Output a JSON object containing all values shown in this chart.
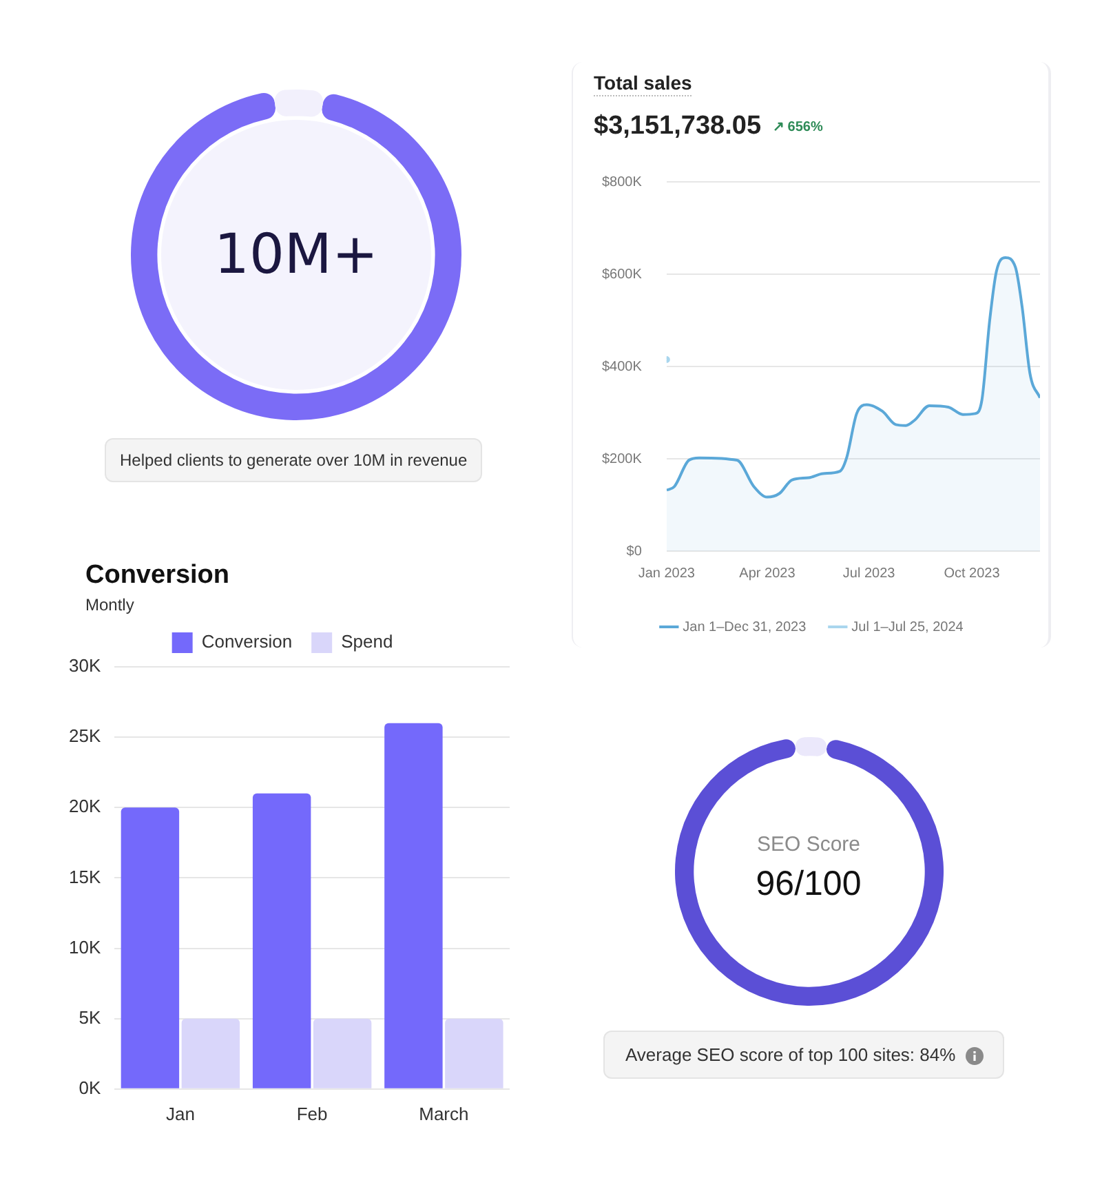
{
  "chart_data": [
    {
      "type": "donut",
      "categories": [
        null,
        null
      ],
      "values": [
        95,
        5
      ],
      "colors": [
        "#7b6cf6",
        "#f2f0fc"
      ],
      "annotations": [
        "10M+",
        "Helped clients to generate over 10M in revenue"
      ]
    },
    {
      "type": "area",
      "title": "Total sales",
      "subtitle": "$3,151,738.05",
      "annotations": [
        "↗ 656%"
      ],
      "series": [
        {
          "name": "Jan 1–Dec 31, 2023",
          "color": "#5ba8d8",
          "line_style": "solid",
          "x": [
            "2023-01-01",
            "2023-01-08",
            "2023-01-21",
            "2023-01-30",
            "2023-03-05",
            "2023-03-20",
            "2023-04-01",
            "2023-04-12",
            "2023-04-23",
            "2023-05-08",
            "2023-05-21",
            "2023-06-05",
            "2023-06-11",
            "2023-06-20",
            "2023-06-29",
            "2023-07-13",
            "2023-07-25",
            "2023-08-03",
            "2023-08-11",
            "2023-08-24",
            "2023-09-10",
            "2023-09-23",
            "2023-10-04",
            "2023-10-10",
            "2023-10-17",
            "2023-10-23",
            "2023-10-31",
            "2023-11-09",
            "2023-11-15",
            "2023-11-22",
            "2023-12-01"
          ],
          "values": [
            132,
            140,
            197,
            202,
            197,
            140,
            117,
            125,
            154,
            159,
            168,
            173,
            202,
            298,
            317,
            303,
            274,
            272,
            284,
            315,
            312,
            296,
            298,
            327,
            500,
            606,
            636,
            615,
            529,
            385,
            332
          ]
        },
        {
          "name": "Jul 1–Jul 25, 2024",
          "color": "#a9d6ee",
          "type": "line",
          "line_style": "dotted",
          "marker": "circle",
          "x": [
            "2023-01-01"
          ],
          "values": [
            415
          ]
        }
      ],
      "xlim": [
        "2023-01-01",
        "2023-12-01"
      ],
      "xticks": [
        {
          "value": "2023-01-01",
          "label": "Jan 2023"
        },
        {
          "value": "2023-04-01",
          "label": "Apr 2023"
        },
        {
          "value": "2023-07-01",
          "label": "Jul 2023"
        },
        {
          "value": "2023-10-01",
          "label": "Oct 2023"
        }
      ],
      "ylim": [
        0,
        800
      ],
      "yticks": [
        {
          "value": 0,
          "label": "$0"
        },
        {
          "value": 200,
          "label": "$200K"
        },
        {
          "value": 400,
          "label": "$400K"
        },
        {
          "value": 600,
          "label": "$600K"
        },
        {
          "value": 800,
          "label": "$800K"
        }
      ],
      "grid": "y",
      "legend": "bottom"
    },
    {
      "type": "bar",
      "title": "Conversion",
      "subtitle": "Montly",
      "categories": [
        "Jan",
        "Feb",
        "March"
      ],
      "series": [
        {
          "name": "Conversion",
          "color": "#7469fb",
          "values": [
            20000,
            21000,
            26000
          ]
        },
        {
          "name": "Spend",
          "color": "#d9d6fa",
          "values": [
            5000,
            5000,
            5000
          ]
        }
      ],
      "ylim": [
        0,
        30000
      ],
      "yticks": [
        {
          "value": 0,
          "label": "0K"
        },
        {
          "value": 5000,
          "label": "5K"
        },
        {
          "value": 10000,
          "label": "10K"
        },
        {
          "value": 15000,
          "label": "15K"
        },
        {
          "value": 20000,
          "label": "20K"
        },
        {
          "value": 25000,
          "label": "25K"
        },
        {
          "value": 30000,
          "label": "30K"
        }
      ],
      "grid": "y",
      "legend": "top"
    },
    {
      "type": "donut",
      "categories": [
        null,
        null
      ],
      "values": [
        96,
        4
      ],
      "colors": [
        "#5b4fd6",
        "#ebe8fb"
      ],
      "annotations": [
        "SEO Score",
        "96/100",
        "Average SEO score of top 100 sites: 84%"
      ]
    }
  ]
}
